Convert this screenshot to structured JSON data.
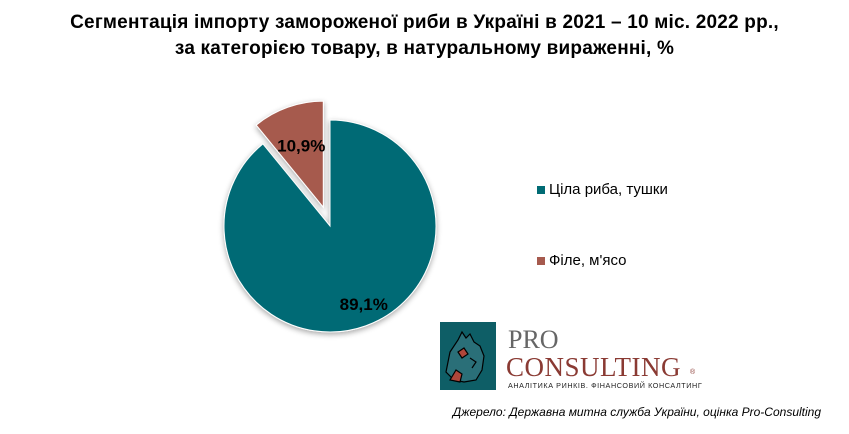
{
  "title_line1": "Сегментація імпорту замороженої риби в Україні в 2021 – 10 міс. 2022 рр.,",
  "title_line2": "за категорією товару, в натуральному вираженні, %",
  "chart_data": {
    "type": "pie",
    "title": "Сегментація імпорту замороженої риби в Україні в 2021 – 10 міс. 2022 рр., за категорією товару, в натуральному вираженні, %",
    "slices": [
      {
        "label": "Ціла риба, тушки",
        "value": 89.1,
        "display": "89,1%",
        "color": "#006B74"
      },
      {
        "label": "Філе, м'ясо",
        "value": 10.9,
        "display": "10,9%",
        "color": "#A65A4E"
      }
    ],
    "legend_position": "right",
    "exploded_slice": "Філе, м'ясо"
  },
  "legend": [
    {
      "label": "Ціла риба, тушки",
      "color": "#006B74"
    },
    {
      "label": "Філе, м'ясо",
      "color": "#A65A4E"
    }
  ],
  "logo": {
    "pro": "PRO",
    "consulting": "CONSULTING",
    "registered": "®",
    "tagline": "АНАЛІТИКА РИНКІВ. ФІНАНСОВИЙ КОНСАЛТИНГ"
  },
  "source": "Джерело: Державна митна служба України, оцінка Pro-Consulting"
}
